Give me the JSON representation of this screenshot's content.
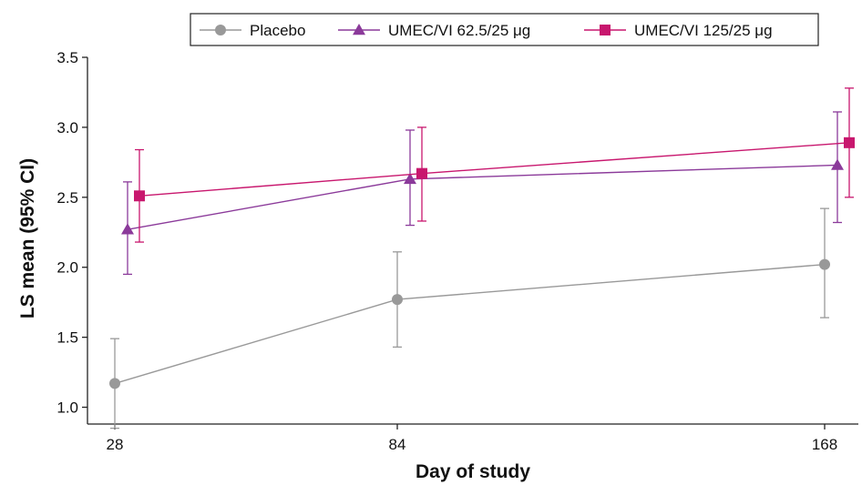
{
  "chart_data": {
    "type": "line",
    "title": "",
    "xlabel": "Day of study",
    "ylabel": "LS mean (95% CI)",
    "x_ticks": [
      "28",
      "84",
      "168"
    ],
    "y_ticks": [
      "1.0",
      "1.5",
      "2.0",
      "2.5",
      "3.0",
      "3.5"
    ],
    "ylim": [
      0.88,
      3.5
    ],
    "grid": false,
    "legend_position": "top",
    "series": [
      {
        "name": "Placebo",
        "color": "#999999",
        "marker": "circle",
        "x": [
          28,
          84,
          168
        ],
        "values": [
          1.17,
          1.77,
          2.02
        ],
        "ci_low": [
          0.85,
          1.43,
          1.64
        ],
        "ci_high": [
          1.49,
          2.11,
          2.42
        ]
      },
      {
        "name": "UMEC/VI 62.5/25 μg",
        "color": "#8B3A9A",
        "marker": "triangle",
        "x": [
          28,
          84,
          168
        ],
        "values": [
          2.27,
          2.63,
          2.73
        ],
        "ci_low": [
          1.95,
          2.3,
          2.32
        ],
        "ci_high": [
          2.61,
          2.98,
          3.11
        ]
      },
      {
        "name": "UMEC/VI 125/25 μg",
        "color": "#C8176E",
        "marker": "square",
        "x": [
          28,
          84,
          168
        ],
        "values": [
          2.51,
          2.67,
          2.89
        ],
        "ci_low": [
          2.18,
          2.33,
          2.5
        ],
        "ci_high": [
          2.84,
          3.0,
          3.28
        ]
      }
    ]
  }
}
